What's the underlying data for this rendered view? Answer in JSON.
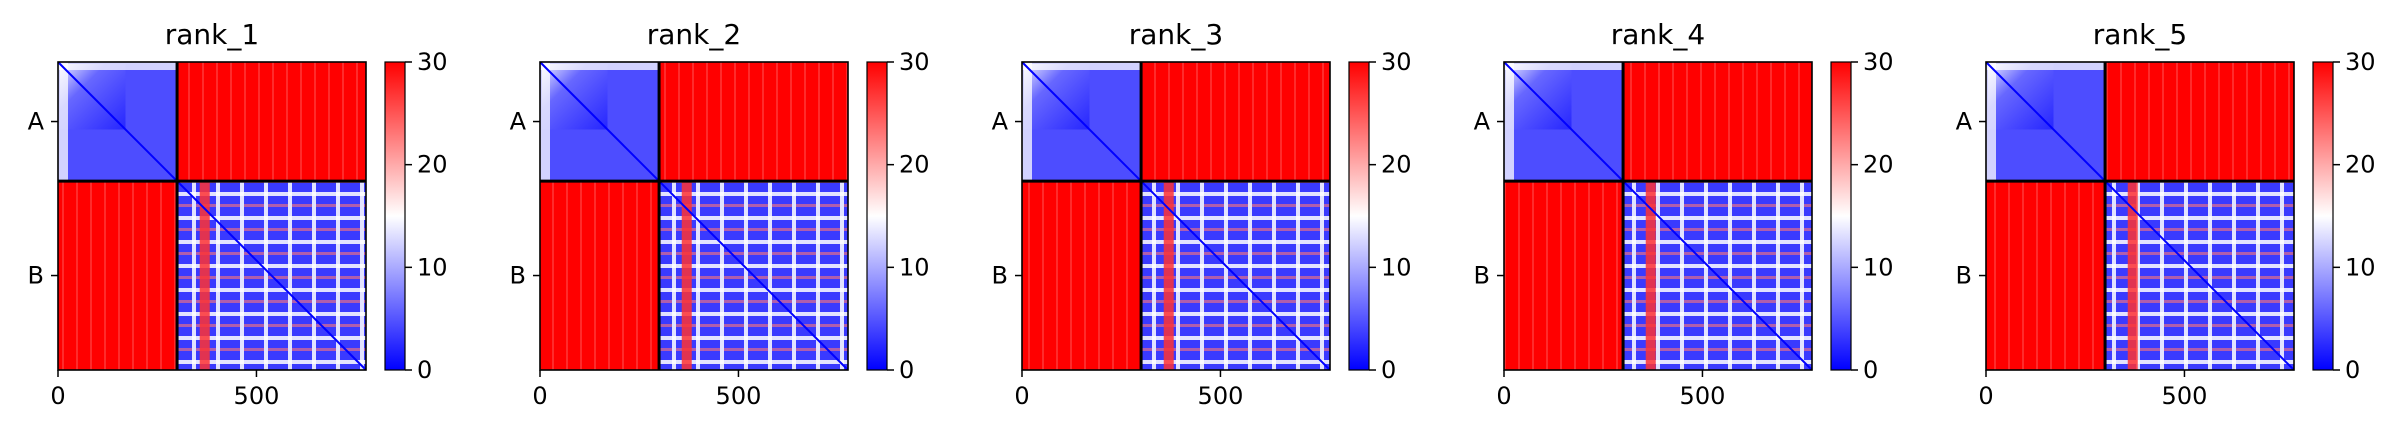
{
  "chart_data": {
    "type": "heatmap",
    "colormap": {
      "name": "bwr",
      "stops": [
        "#0000ff",
        "#ffffff",
        "#ff0000"
      ],
      "range": [
        0,
        30
      ],
      "ticks": [
        0,
        10,
        20,
        30
      ]
    },
    "x_ticks": [
      0,
      500
    ],
    "x_range": [
      0,
      776
    ],
    "segment_labels": [
      "A",
      "B"
    ],
    "segment_boundary": 300,
    "panels": [
      {
        "title": "rank_1"
      },
      {
        "title": "rank_2"
      },
      {
        "title": "rank_3"
      },
      {
        "title": "rank_4"
      },
      {
        "title": "rank_5"
      }
    ],
    "grid": false,
    "legend": "colorbar-right"
  }
}
